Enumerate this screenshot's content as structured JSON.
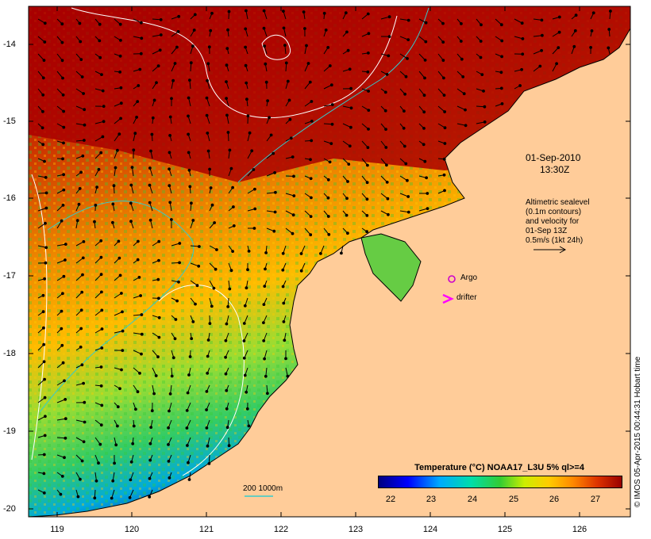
{
  "map": {
    "lon_ticks": [
      "119",
      "120",
      "121",
      "122",
      "123",
      "124",
      "125",
      "126"
    ],
    "lat_ticks": [
      "-14",
      "-15",
      "-16",
      "-17",
      "-18",
      "-19",
      "-20"
    ],
    "date_label": "01-Sep-2010",
    "time_label": "13:30Z",
    "sealevel_note": [
      "Altimetric sealevel",
      "(0.1m contours)",
      "and velocity for",
      "01-Sep 13Z",
      "0.5m/s (1kt 24h)"
    ],
    "argo_label": "Argo",
    "drifter_label": "drifter",
    "bathy_label": "200  1000m",
    "credit": "© IMOS 05-Apr-2015 00:44:31 Hobart time",
    "colors": {
      "land": "#FFCC99",
      "argo": "#CC00CC",
      "drifter": "#FF00FF",
      "bathy": "#33CCCC"
    }
  },
  "colorbar": {
    "title": "Temperature (°C) NOAA17_L3U 5% ql>=4",
    "range": [
      21.5,
      27.6
    ],
    "ticks": [
      "22",
      "23",
      "24",
      "25",
      "26",
      "27"
    ]
  }
}
